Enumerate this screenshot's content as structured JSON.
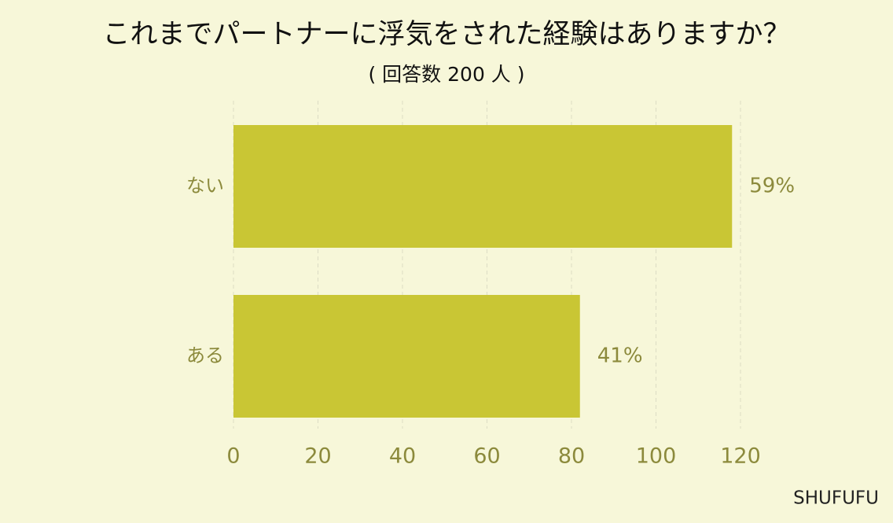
{
  "chart_data": {
    "type": "bar",
    "orientation": "horizontal",
    "title": "これまでパートナーに浮気をされた経験はありますか？",
    "subtitle": "( 回答数 200 人 )",
    "categories": [
      "ない",
      "ある"
    ],
    "values": [
      118,
      82
    ],
    "value_labels": [
      "59%",
      "41%"
    ],
    "color": "#c9c634",
    "xlim": [
      0,
      120
    ],
    "xticks": [
      0,
      20,
      40,
      60,
      80,
      100,
      120
    ],
    "grid": true,
    "source": "SHUFUFU"
  }
}
